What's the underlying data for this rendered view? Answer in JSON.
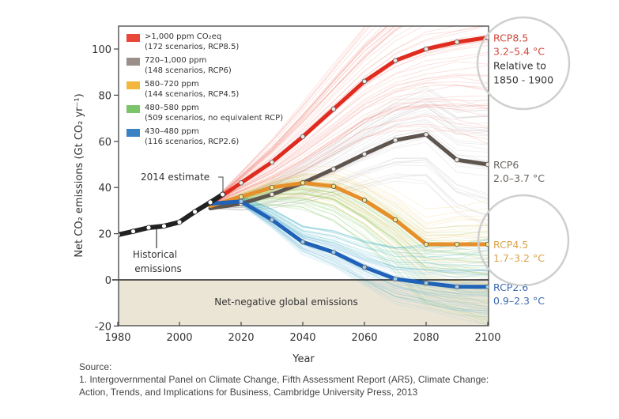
{
  "chart_data": {
    "type": "line",
    "title": "",
    "xlabel": "Year",
    "ylabel": "Net CO₂ emissions (Gt CO₂ yr⁻¹)",
    "xlim": [
      1980,
      2100
    ],
    "ylim": [
      -20,
      110
    ],
    "x_ticks": [
      1980,
      2000,
      2020,
      2040,
      2060,
      2080,
      2100
    ],
    "y_ticks": [
      -20,
      0,
      20,
      40,
      60,
      80,
      100
    ],
    "grid": false,
    "legend_position": "top-left",
    "legend": [
      {
        "line1": ">1,000 ppm CO₂eq",
        "line2": "(172 scenarios, RCP8.5)",
        "color": "#e8473a"
      },
      {
        "line1": "720–1,000 ppm",
        "line2": "(148 scenarios, RCP6)",
        "color": "#9a8f89"
      },
      {
        "line1": "580–720 ppm",
        "line2": "(144 scenarios, RCP4.5)",
        "color": "#f2b73c"
      },
      {
        "line1": "480–580 ppm",
        "line2": "(509 scenarios, no equivalent RCP)",
        "color": "#7cc46a"
      },
      {
        "line1": "430–480 ppm",
        "line2": "(116 scenarios, RCP2.6)",
        "color": "#3b82c4"
      }
    ],
    "series": [
      {
        "name": "Historical emissions",
        "color": "#222222",
        "x": [
          1980,
          1985,
          1990,
          1995,
          2000,
          2005,
          2010,
          2014
        ],
        "values": [
          19.5,
          21,
          22.6,
          23.3,
          25,
          29.5,
          33.6,
          37
        ]
      },
      {
        "name": "RCP8.5",
        "color": "#e02b1f",
        "x": [
          2010,
          2020,
          2030,
          2040,
          2050,
          2060,
          2070,
          2080,
          2090,
          2100
        ],
        "values": [
          33,
          42,
          51,
          62,
          74,
          86,
          95,
          100,
          103,
          105
        ]
      },
      {
        "name": "RCP6",
        "color": "#5f554f",
        "x": [
          2010,
          2020,
          2030,
          2040,
          2050,
          2060,
          2070,
          2080,
          2090,
          2100
        ],
        "values": [
          31,
          33,
          37,
          42,
          48,
          54.5,
          60.5,
          63,
          52,
          50
        ]
      },
      {
        "name": "RCP4.5",
        "color": "#e5902a",
        "x": [
          2010,
          2020,
          2030,
          2040,
          2050,
          2060,
          2070,
          2080,
          2090,
          2100
        ],
        "values": [
          32,
          36,
          40,
          42,
          40.5,
          34.5,
          26,
          15.4,
          15.4,
          15.4
        ]
      },
      {
        "name": "RCP2.6",
        "color": "#1f62b8",
        "x": [
          2010,
          2020,
          2030,
          2040,
          2050,
          2060,
          2070,
          2080,
          2090,
          2100
        ],
        "values": [
          33,
          34,
          26,
          16.4,
          12,
          5.5,
          0.4,
          -1.4,
          -3,
          -3
        ]
      }
    ],
    "annotations": {
      "estimate_label": "2014 estimate",
      "historical_line1": "Historical",
      "historical_line2": "emissions",
      "negative_region": "Net-negative global emissions"
    },
    "rcp_labels": [
      {
        "name": "RCP8.5",
        "range": "3.2–5.4 °C",
        "color": "#d0473c",
        "note1": "Relative to",
        "note2": "1850 - 1900"
      },
      {
        "name": "RCP6",
        "range": "2.0–3.7 °C",
        "color": "#6b6460"
      },
      {
        "name": "RCP4.5",
        "range": "1.7–3.2 °C",
        "color": "#d9a24a"
      },
      {
        "name": "RCP2.6",
        "range": "0.9–2.3 °C",
        "color": "#3a6ab0"
      }
    ]
  },
  "source": {
    "heading": "Source:",
    "line1": "1. Intergovernmental Panel on Climate Change, Fifth Assessment Report (AR5), Climate Change:",
    "line2": "Action, Trends, and Implications for Business, Cambridge University Press, 2013"
  }
}
